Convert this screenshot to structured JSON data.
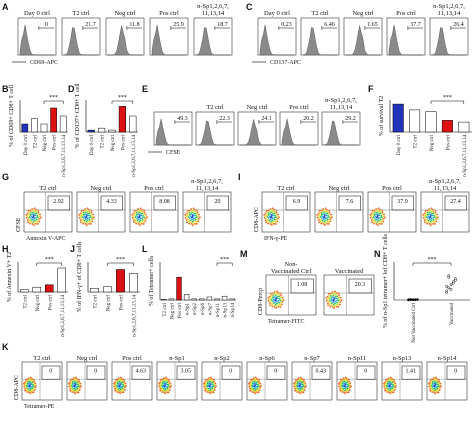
{
  "panels": {
    "A": {
      "letter": "A",
      "titles": [
        [
          "Day 0 ctrl"
        ],
        [
          "T2 ctrl"
        ],
        [
          "Neg ctrl"
        ],
        [
          "Pos ctrl"
        ],
        [
          "n-Sp1,2,6,7,",
          "11,13,14"
        ]
      ],
      "gates": [
        "0",
        "21.7",
        "11.8",
        "25.9",
        "18.7"
      ],
      "xlabel": "CD69-APC"
    },
    "C": {
      "letter": "C",
      "titles": [
        [
          "Day 0 ctrl"
        ],
        [
          "T2 ctrl"
        ],
        [
          "Neg ctrl"
        ],
        [
          "Pos ctrl"
        ],
        [
          "n-Sp1,2,6,7,",
          "11,13,14"
        ]
      ],
      "gates": [
        "0.23",
        "6.46",
        "1.65",
        "37.7",
        "26.4"
      ],
      "xlabel": "CD137-APC"
    },
    "E": {
      "letter": "E",
      "titles": [
        [
          "T2 ctrl"
        ],
        [
          "Neg ctrl"
        ],
        [
          "Pos ctrl"
        ],
        [
          "n-Sp1,2,6,7,",
          "11,13,14"
        ]
      ],
      "gates": [
        "49.3",
        "22.3",
        "24.1",
        "20.2",
        "29.2"
      ],
      "xlabel": "CFSE"
    },
    "G": {
      "letter": "G",
      "titles": [
        [
          "T2 ctrl"
        ],
        [
          "Neg ctrl"
        ],
        [
          "Pos ctrl"
        ],
        [
          "n-Sp1,2,6,7,",
          "11,13,14"
        ]
      ],
      "gates": [
        "2.92",
        "4.33",
        "8.08",
        "20"
      ],
      "xlabel": "Annexin V-APC",
      "ylabel": "CFSE"
    },
    "I": {
      "letter": "I",
      "titles": [
        [
          "T2 ctrl"
        ],
        [
          "Neg ctrl"
        ],
        [
          "Pos ctrl"
        ],
        [
          "n-Sp1,2,6,7,",
          "11,13,14"
        ]
      ],
      "gates": [
        "6.9",
        "7.6",
        "37.9",
        "27.4"
      ],
      "xlabel": "IFN-γ-PE",
      "ylabel": "CD8-APC"
    },
    "M": {
      "letter": "M",
      "titles": [
        [
          "Non-",
          "Vaccinated Ctrl"
        ],
        [
          "Vaccinated"
        ]
      ],
      "gates": [
        "1.08",
        "20.3"
      ],
      "xlabel": "Tetramer-FITC",
      "ylabel": "CD8-Percp"
    },
    "K": {
      "letter": "K",
      "titles": [
        [
          "T2 ctrl"
        ],
        [
          "Neg ctrl"
        ],
        [
          "Pos ctrl"
        ],
        [
          "n-Sp1"
        ],
        [
          "n-Sp2"
        ],
        [
          "n-Sp6"
        ],
        [
          "n-Sp7"
        ],
        [
          "n-Sp11"
        ],
        [
          "n-Sp13"
        ],
        [
          "n-Sp14"
        ]
      ],
      "gates": [
        "0",
        "0",
        "4.63",
        "3.05",
        "0",
        "0",
        "0.43",
        "0",
        "1.41",
        "0"
      ],
      "xlabel": "Tetramer-PE",
      "ylabel": "CD8-APC"
    },
    "B": {
      "letter": "B",
      "ylabel": "% of CD69+ CD8+ T cell",
      "categories": [
        "Day 0 ctrl",
        "T2 ctrl",
        "Neg ctrl",
        "Pos ctrl",
        "n-Sp1,2,6,7,11,13,14"
      ],
      "values": [
        15,
        25,
        15,
        45,
        30
      ],
      "colors": [
        "#2233bb",
        "#ffffff",
        "#ffffff",
        "#dd1111",
        "#ffffff"
      ],
      "ylim": [
        0,
        60
      ],
      "sig": "***"
    },
    "D": {
      "letter": "D",
      "ylabel": "% of CD137+ CD8+ T cell",
      "categories": [
        "Day 0 ctrl",
        "T2 ctrl",
        "Neg ctrl",
        "Pos ctrl",
        "n-Sp1,2,6,7,11,13,14"
      ],
      "values": [
        3,
        6,
        3,
        40,
        25
      ],
      "colors": [
        "#2233bb",
        "#ffffff",
        "#ffffff",
        "#dd1111",
        "#ffffff"
      ],
      "ylim": [
        0,
        50
      ],
      "sig": "***"
    },
    "F": {
      "letter": "F",
      "ylabel": "% of survival T2",
      "categories": [
        "Day 0 ctrl",
        "T2 ctrl",
        "Neg ctrl",
        "Pos ctrl",
        "n-Sp1,2,6,7,11,13,14"
      ],
      "values": [
        48,
        38,
        35,
        20,
        17
      ],
      "colors": [
        "#2233bb",
        "#ffffff",
        "#ffffff",
        "#dd1111",
        "#ffffff"
      ],
      "ylim": [
        0,
        55
      ],
      "sig": "***"
    },
    "H": {
      "letter": "H",
      "ylabel": "% of Annexin V+ T2",
      "categories": [
        "T2 ctrl",
        "Neg ctrl",
        "Pos ctrl",
        "n-Sp1,2,6,7,11,13,14"
      ],
      "values": [
        2,
        4,
        6,
        20
      ],
      "colors": [
        "#ffffff",
        "#ffffff",
        "#dd1111",
        "#ffffff"
      ],
      "ylim": [
        0,
        25
      ],
      "sig": "***"
    },
    "J": {
      "letter": "J",
      "ylabel": "% of IFN-γ+ of CD8+ T cells",
      "categories": [
        "T2 ctrl",
        "Neg ctrl",
        "Pos ctrl",
        "n-Sp1,2,6,7,11,13,14"
      ],
      "values": [
        5,
        7,
        30,
        25
      ],
      "colors": [
        "#ffffff",
        "#ffffff",
        "#dd1111",
        "#ffffff"
      ],
      "ylim": [
        0,
        40
      ],
      "sig": "***"
    },
    "L": {
      "letter": "L",
      "ylabel": "% of Tetramer+ cells",
      "categories": [
        "T2 ctrl",
        "Neg ctrl",
        "Pos ctrl",
        "n-Sp1",
        "n-Sp2",
        "n-Sp6",
        "n-Sp7",
        "n-Sp11",
        "n-Sp13",
        "n-Sp14"
      ],
      "values": [
        0.2,
        0.3,
        6,
        1.5,
        0.3,
        0.3,
        0.8,
        0.3,
        1,
        0.3
      ],
      "colors": [
        "#ffffff",
        "#ffffff",
        "#dd1111",
        "#ffffff",
        "#ffffff",
        "#ffffff",
        "#ffffff",
        "#ffffff",
        "#ffffff",
        "#ffffff"
      ],
      "ylim": [
        0,
        10
      ],
      "sig": "***"
    },
    "N": {
      "letter": "N",
      "ylabel": "% of n-Sp1 tetramer+ lof CD8+ T cells",
      "categories": [
        "Not Vaccinated Ctrl",
        "Vaccinated"
      ],
      "points": [
        [
          0.2,
          0.3,
          0.1,
          0.2,
          0.3,
          0.1,
          0.2,
          0.2
        ],
        [
          5,
          8,
          10,
          12,
          14,
          9,
          16,
          7,
          11,
          13,
          6,
          15
        ]
      ],
      "ylim": [
        0,
        25
      ],
      "sig": "***"
    }
  }
}
